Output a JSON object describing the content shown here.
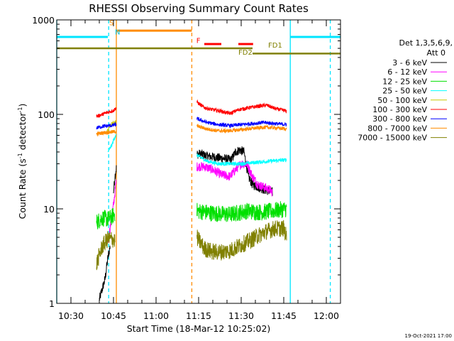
{
  "chart_data": {
    "type": "line",
    "title": "RHESSI Observing Summary Count Rates",
    "xlabel": "Start Time (18-Mar-12 10:25:02)",
    "ylabel_main": "Count Rate (s",
    "ylabel_sup1": "-1",
    "ylabel_mid": " detector",
    "ylabel_sup2": "-1",
    "ylabel_end": ")",
    "yscale": "log",
    "ylim": [
      1,
      1000
    ],
    "xlim_minutes": [
      0,
      100
    ],
    "x_ticks": [
      {
        "m": 5,
        "label": "10:30"
      },
      {
        "m": 20,
        "label": "10:45"
      },
      {
        "m": 35,
        "label": "11:00"
      },
      {
        "m": 50,
        "label": "11:15"
      },
      {
        "m": 65,
        "label": "11:30"
      },
      {
        "m": 80,
        "label": "11:45"
      },
      {
        "m": 95,
        "label": "12:00"
      }
    ],
    "y_ticks": [
      {
        "v": 1,
        "label": "1"
      },
      {
        "v": 10,
        "label": "10"
      },
      {
        "v": 100,
        "label": "100"
      },
      {
        "v": 1000,
        "label": "1000"
      }
    ],
    "legend_header": [
      "Det 1,3,5,6,9,",
      "Att 0"
    ],
    "series": [
      {
        "name": "3 - 6 keV",
        "color": "#000000",
        "segments": [
          {
            "x": [
              15.0,
              16.0,
              17.0,
              18.0,
              18.8
            ],
            "y": [
              1.1,
              1.4,
              1.8,
              3.0,
              4.0
            ]
          },
          {
            "x": [
              20.0,
              20.5,
              21.0
            ],
            "y": [
              15,
              22,
              27
            ]
          },
          {
            "x": [
              49.4,
              51,
              53,
              56,
              59,
              61.5,
              63,
              64.5,
              66,
              67.5,
              69,
              71,
              73,
              75,
              76
            ],
            "y": [
              38,
              38,
              36,
              35,
              34,
              33,
              40,
              42,
              40,
              22,
              18,
              17,
              16,
              15.5,
              15
            ]
          }
        ]
      },
      {
        "name": "6 - 12 keV",
        "color": "#ff00ff",
        "segments": [
          {
            "x": [
              18.0,
              20.0,
              21.0
            ],
            "y": [
              4.3,
              11,
              20
            ]
          },
          {
            "x": [
              49.4,
              52,
              55,
              58,
              61,
              63,
              65,
              67,
              69,
              71,
              73,
              75,
              76
            ],
            "y": [
              28,
              28,
              26,
              23,
              22,
              26,
              30,
              30,
              22,
              18,
              17,
              16,
              15
            ]
          }
        ]
      },
      {
        "name": "12 - 25 keV",
        "color": "#00e000",
        "segments": [
          {
            "x": [
              14.0,
              16.0,
              18.0,
              19.5,
              20.5
            ],
            "y": [
              7.2,
              8.0,
              7.8,
              8.2,
              9.0
            ]
          },
          {
            "x": [
              49.4,
              55,
              61,
              67,
              72,
              76,
              79,
              81
            ],
            "y": [
              9.5,
              9.0,
              8.7,
              9.5,
              9.2,
              9.5,
              9.8,
              10
            ]
          }
        ]
      },
      {
        "name": "25 - 50 keV",
        "color": "#00ffff",
        "segments": [
          {
            "x": [
              18.0,
              19.5,
              20.5,
              21.0
            ],
            "y": [
              40,
              48,
              58,
              60
            ]
          },
          {
            "x": [
              49.4,
              53,
              57,
              61,
              65,
              70,
              75,
              81
            ],
            "y": [
              37,
              32,
              30,
              30,
              30,
              31,
              32,
              33
            ]
          }
        ]
      },
      {
        "name": "50 - 100 keV",
        "color": "#c8c800",
        "segments": [
          {
            "x": [
              17.5,
              19.0,
              20.5,
              21.0
            ],
            "y": [
              65,
              78,
              82,
              85
            ]
          }
        ]
      },
      {
        "name": "100 - 300 keV",
        "color": "#ff0000",
        "segments": [
          {
            "x": [
              14.0,
              16.0,
              18.0,
              20.0,
              21.0
            ],
            "y": [
              95,
              100,
              105,
              110,
              118
            ]
          },
          {
            "x": [
              49.4,
              52,
              55,
              58,
              61,
              64,
              68,
              71,
              74,
              77,
              80,
              81
            ],
            "y": [
              135,
              118,
              112,
              108,
              102,
              112,
              118,
              122,
              125,
              115,
              110,
              108
            ]
          }
        ]
      },
      {
        "name": "300 - 800 keV",
        "color": "#0000ff",
        "segments": [
          {
            "x": [
              14.0,
              16.5,
              19.0,
              21.0
            ],
            "y": [
              72,
              75,
              76,
              78
            ]
          },
          {
            "x": [
              49.4,
              53,
              57,
              61,
              65,
              69,
              73,
              77,
              81
            ],
            "y": [
              90,
              82,
              78,
              76,
              78,
              80,
              82,
              80,
              78
            ]
          }
        ]
      },
      {
        "name": "800 - 7000 keV",
        "color": "#ff8c00",
        "segments": [
          {
            "x": [
              14.0,
              16.5,
              19.0,
              21.0
            ],
            "y": [
              62,
              64,
              65,
              66
            ]
          },
          {
            "x": [
              49.4,
              53,
              57,
              61,
              65,
              69,
              73,
              77,
              81
            ],
            "y": [
              75,
              70,
              67,
              67,
              69,
              71,
              73,
              72,
              70
            ]
          }
        ]
      },
      {
        "name": "7000 - 15000 keV",
        "color": "#808000",
        "segments": [
          {
            "x": [
              14.0,
              16.0,
              18.0,
              19.5,
              20.5
            ],
            "y": [
              2.6,
              4.0,
              4.8,
              4.8,
              4.6
            ]
          },
          {
            "x": [
              49.4,
              52,
              55,
              58,
              61,
              64,
              68,
              71,
              74,
              77,
              80,
              81
            ],
            "y": [
              5.0,
              3.8,
              3.5,
              3.5,
              3.6,
              4.0,
              4.6,
              5.2,
              5.8,
              6.2,
              6.2,
              5.0
            ]
          }
        ]
      }
    ],
    "night_lines": [
      {
        "m": 0.0,
        "style": "solid"
      },
      {
        "m": 18.3,
        "style": "dashed"
      },
      {
        "m": 82.3,
        "style": "solid"
      },
      {
        "m": 96.4,
        "style": "dashed"
      }
    ],
    "saa_lines": [
      {
        "m": 21.0,
        "style": "solid"
      },
      {
        "m": 47.6,
        "style": "dashed"
      }
    ],
    "night_bars": [
      {
        "from": 0.0,
        "to": 18.0
      },
      {
        "from": 82.3,
        "to": 100.0
      }
    ],
    "saa_bar": {
      "from": 21.3,
      "to": 47.6
    },
    "flare_bars": [
      {
        "from": 52.0,
        "to": 58.0
      },
      {
        "from": 64.0,
        "to": 69.2
      }
    ],
    "fd_bars": [
      {
        "from": 0.0,
        "to": 69.0,
        "v": 500
      },
      {
        "from": 69.0,
        "to": 100.0,
        "v": 440
      }
    ],
    "annotations": [
      {
        "text": "S",
        "m": 18.5,
        "v": 880,
        "color": "#ff8c00"
      },
      {
        "text": "N",
        "m": 20.5,
        "v": 700,
        "color": "#00bcd4"
      },
      {
        "text": "F",
        "m": 49.2,
        "v": 570,
        "color": "#ff0000"
      },
      {
        "text": "FD1",
        "m": 74.5,
        "v": 510,
        "color": "#808000"
      },
      {
        "text": "FD2",
        "m": 64.0,
        "v": 428,
        "color": "#808000"
      }
    ],
    "colors": {
      "night": "#00e5ff",
      "night_label": "#00bcd4",
      "saa": "#ff8c00",
      "flare": "#ff0000",
      "fd": "#808000"
    }
  },
  "timestamp": "19-Oct-2021 17:00"
}
